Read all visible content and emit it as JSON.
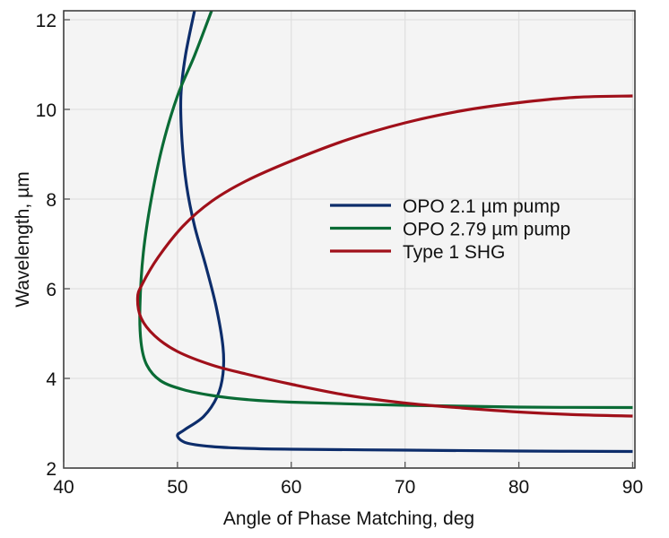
{
  "chart_data": {
    "type": "line",
    "title": "",
    "xlabel": "Angle of Phase Matching, deg",
    "ylabel": "Wavelength, µm",
    "xlim": [
      40,
      90.2
    ],
    "ylim": [
      2,
      12.2
    ],
    "xticks": [
      40,
      50,
      60,
      70,
      80,
      90
    ],
    "yticks": [
      2,
      4,
      6,
      8,
      10,
      12
    ],
    "grid": true,
    "legend_position": "center-right",
    "series": [
      {
        "name": "OPO 2.1 µm pump",
        "color": "#0d2d6b",
        "points": [
          [
            51.5,
            12.2
          ],
          [
            50.7,
            11.2
          ],
          [
            50.3,
            10.3
          ],
          [
            50.4,
            9.3
          ],
          [
            50.8,
            8.3
          ],
          [
            51.5,
            7.4
          ],
          [
            52.5,
            6.5
          ],
          [
            53.4,
            5.6
          ],
          [
            54,
            4.7
          ],
          [
            54,
            4.1
          ],
          [
            53.5,
            3.6
          ],
          [
            52.3,
            3.15
          ],
          [
            50.6,
            2.85
          ],
          [
            50,
            2.72
          ],
          [
            50.8,
            2.56
          ],
          [
            53,
            2.48
          ],
          [
            56,
            2.44
          ],
          [
            60,
            2.42
          ],
          [
            70,
            2.4
          ],
          [
            80,
            2.38
          ],
          [
            90,
            2.37
          ]
        ]
      },
      {
        "name": "OPO 2.79 µm pump",
        "color": "#0a6b35",
        "points": [
          [
            53,
            12.2
          ],
          [
            51.5,
            11.2
          ],
          [
            50,
            10.3
          ],
          [
            48.7,
            9.2
          ],
          [
            47.7,
            8
          ],
          [
            47,
            6.8
          ],
          [
            46.7,
            5.6
          ],
          [
            46.8,
            4.8
          ],
          [
            47.3,
            4.3
          ],
          [
            48.5,
            3.95
          ],
          [
            50.5,
            3.75
          ],
          [
            53,
            3.62
          ],
          [
            56,
            3.53
          ],
          [
            60,
            3.47
          ],
          [
            70,
            3.4
          ],
          [
            80,
            3.36
          ],
          [
            90,
            3.35
          ]
        ]
      },
      {
        "name": "Type 1 SHG",
        "color": "#a0101a",
        "points": [
          [
            90,
            10.3
          ],
          [
            85,
            10.27
          ],
          [
            80,
            10.15
          ],
          [
            75,
            9.97
          ],
          [
            70,
            9.7
          ],
          [
            65,
            9.33
          ],
          [
            60,
            8.85
          ],
          [
            56,
            8.4
          ],
          [
            53,
            7.95
          ],
          [
            50.5,
            7.4
          ],
          [
            48.3,
            6.7
          ],
          [
            46.9,
            6.1
          ],
          [
            46.5,
            5.8
          ],
          [
            46.8,
            5.35
          ],
          [
            48,
            4.95
          ],
          [
            50,
            4.6
          ],
          [
            53,
            4.3
          ],
          [
            56,
            4.1
          ],
          [
            60,
            3.87
          ],
          [
            65,
            3.62
          ],
          [
            70,
            3.45
          ],
          [
            75,
            3.34
          ],
          [
            80,
            3.25
          ],
          [
            85,
            3.19
          ],
          [
            90,
            3.16
          ]
        ]
      }
    ]
  }
}
